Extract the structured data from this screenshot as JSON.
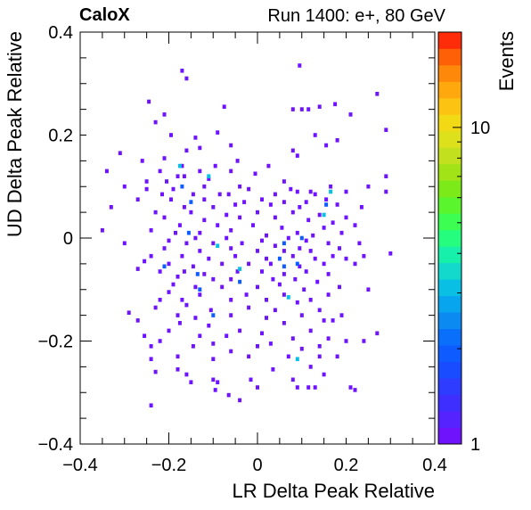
{
  "header": {
    "brand": "CaloX",
    "run_info": "Run 1400: e+, 80 GeV"
  },
  "chart_data": {
    "type": "heatmap",
    "title": "",
    "xlabel": "LR Delta Peak Relative",
    "ylabel": "UD Delta Peak Relative",
    "zlabel": "Events",
    "xlim": [
      -0.4,
      0.4
    ],
    "ylim": [
      -0.4,
      0.4
    ],
    "x_ticks": [
      "−0.4",
      "−0.2",
      "0",
      "0.2",
      "0.4"
    ],
    "y_ticks": [
      "0.4",
      "0.2",
      "0",
      "−0.2",
      "−0.4"
    ],
    "z_scale": "log",
    "zlim": [
      1,
      20
    ],
    "z_ticks": [
      "1",
      "10"
    ],
    "bin_width": 0.008,
    "bins": [
      [
        0.095,
        0.335,
        1
      ],
      [
        -0.16,
        0.31,
        1
      ],
      [
        -0.17,
        0.325,
        1
      ],
      [
        0.27,
        0.28,
        1
      ],
      [
        -0.245,
        0.265,
        1
      ],
      [
        0.175,
        0.26,
        1
      ],
      [
        -0.075,
        0.255,
        1
      ],
      [
        0.08,
        0.25,
        1
      ],
      [
        0.14,
        0.255,
        1
      ],
      [
        0.21,
        0.24,
        1
      ],
      [
        0.1,
        0.25,
        1
      ],
      [
        0.115,
        0.25,
        1
      ],
      [
        -0.21,
        0.24,
        1
      ],
      [
        -0.23,
        0.225,
        1
      ],
      [
        0.13,
        0.2,
        1
      ],
      [
        0.29,
        0.21,
        1
      ],
      [
        -0.195,
        0.2,
        1
      ],
      [
        0.18,
        0.19,
        1
      ],
      [
        -0.09,
        0.205,
        1
      ],
      [
        0.155,
        0.18,
        1
      ],
      [
        -0.06,
        0.18,
        1
      ],
      [
        0.08,
        0.17,
        1
      ],
      [
        -0.31,
        0.165,
        1
      ],
      [
        -0.14,
        0.195,
        1
      ],
      [
        -0.16,
        0.17,
        1
      ],
      [
        -0.13,
        0.175,
        1
      ],
      [
        -0.045,
        0.15,
        1
      ],
      [
        0.09,
        0.16,
        1
      ],
      [
        -0.22,
        0.13,
        1
      ],
      [
        -0.26,
        0.15,
        1
      ],
      [
        -0.095,
        0.14,
        1
      ],
      [
        -0.17,
        0.14,
        1
      ],
      [
        -0.21,
        0.155,
        1
      ],
      [
        0.025,
        0.14,
        1
      ],
      [
        -0.34,
        0.13,
        1
      ],
      [
        -0.06,
        0.13,
        1
      ],
      [
        -0.18,
        0.12,
        1
      ],
      [
        -0.005,
        0.125,
        1
      ],
      [
        -0.165,
        0.12,
        1
      ],
      [
        0.06,
        0.11,
        1
      ],
      [
        -0.11,
        0.115,
        1
      ],
      [
        -0.13,
        0.13,
        1
      ],
      [
        0.29,
        0.12,
        1
      ],
      [
        -0.205,
        0.11,
        1
      ],
      [
        -0.25,
        0.11,
        1
      ],
      [
        -0.3,
        0.1,
        1
      ],
      [
        -0.25,
        0.095,
        1
      ],
      [
        -0.19,
        0.095,
        1
      ],
      [
        -0.12,
        0.1,
        1
      ],
      [
        -0.04,
        0.1,
        1
      ],
      [
        0.075,
        0.095,
        1
      ],
      [
        0.09,
        0.09,
        1
      ],
      [
        0.12,
        0.09,
        1
      ],
      [
        0.2,
        0.09,
        1
      ],
      [
        0.25,
        0.1,
        1
      ],
      [
        -0.215,
        0.085,
        1
      ],
      [
        -0.145,
        0.085,
        1
      ],
      [
        -0.085,
        0.085,
        1
      ],
      [
        -0.065,
        0.085,
        1
      ],
      [
        -0.02,
        0.095,
        1
      ],
      [
        0.04,
        0.085,
        1
      ],
      [
        0.13,
        0.085,
        1
      ],
      [
        0.29,
        0.09,
        1
      ],
      [
        0.165,
        0.1,
        1
      ],
      [
        -0.195,
        0.075,
        1
      ],
      [
        -0.12,
        0.075,
        1
      ],
      [
        -0.03,
        0.07,
        1
      ],
      [
        0.01,
        0.075,
        1
      ],
      [
        0.06,
        0.07,
        1
      ],
      [
        0.11,
        0.07,
        1
      ],
      [
        0.155,
        0.075,
        1
      ],
      [
        -0.27,
        0.075,
        1
      ],
      [
        -0.165,
        0.06,
        1
      ],
      [
        -0.1,
        0.06,
        1
      ],
      [
        -0.05,
        0.065,
        1
      ],
      [
        0.03,
        0.065,
        1
      ],
      [
        0.095,
        0.06,
        1
      ],
      [
        0.18,
        0.065,
        1
      ],
      [
        0.235,
        0.06,
        1
      ],
      [
        -0.33,
        0.06,
        1
      ],
      [
        -0.23,
        0.05,
        1
      ],
      [
        -0.15,
        0.05,
        1
      ],
      [
        -0.07,
        0.045,
        1
      ],
      [
        0.0,
        0.05,
        1
      ],
      [
        0.08,
        0.05,
        1
      ],
      [
        0.14,
        0.045,
        1
      ],
      [
        0.2,
        0.04,
        1
      ],
      [
        -0.21,
        0.04,
        1
      ],
      [
        -0.12,
        0.035,
        1
      ],
      [
        -0.04,
        0.04,
        1
      ],
      [
        0.04,
        0.04,
        1
      ],
      [
        0.115,
        0.035,
        1
      ],
      [
        0.17,
        0.03,
        1
      ],
      [
        -0.175,
        0.025,
        1
      ],
      [
        -0.09,
        0.025,
        1
      ],
      [
        -0.01,
        0.025,
        1
      ],
      [
        0.055,
        0.02,
        1
      ],
      [
        0.15,
        0.02,
        1
      ],
      [
        0.22,
        0.025,
        1
      ],
      [
        -0.35,
        0.015,
        1
      ],
      [
        -0.24,
        0.015,
        1
      ],
      [
        -0.185,
        0.01,
        1
      ],
      [
        -0.13,
        0.01,
        1
      ],
      [
        -0.06,
        0.015,
        1
      ],
      [
        0.02,
        0.005,
        1
      ],
      [
        0.09,
        0.01,
        1
      ],
      [
        0.125,
        0.005,
        1
      ],
      [
        0.19,
        0.01,
        1
      ],
      [
        -0.14,
        0.0,
        1
      ],
      [
        -0.07,
        0.0,
        1
      ],
      [
        0.01,
        -0.005,
        1
      ],
      [
        0.07,
        0.0,
        1
      ],
      [
        0.11,
        -0.005,
        1
      ],
      [
        -0.3,
        -0.01,
        1
      ],
      [
        -0.2,
        -0.005,
        1
      ],
      [
        -0.16,
        -0.01,
        1
      ],
      [
        -0.1,
        -0.01,
        1
      ],
      [
        -0.035,
        -0.01,
        1
      ],
      [
        0.04,
        -0.015,
        1
      ],
      [
        0.095,
        -0.02,
        1
      ],
      [
        0.16,
        -0.01,
        1
      ],
      [
        0.23,
        -0.01,
        1
      ],
      [
        -0.21,
        -0.02,
        1
      ],
      [
        -0.13,
        -0.025,
        1
      ],
      [
        -0.06,
        -0.02,
        1
      ],
      [
        0.0,
        -0.025,
        1
      ],
      [
        0.06,
        -0.025,
        1
      ],
      [
        0.12,
        -0.025,
        1
      ],
      [
        0.185,
        -0.02,
        1
      ],
      [
        -0.24,
        -0.035,
        1
      ],
      [
        -0.17,
        -0.035,
        1
      ],
      [
        -0.11,
        -0.04,
        1
      ],
      [
        -0.05,
        -0.035,
        1
      ],
      [
        0.02,
        -0.04,
        1
      ],
      [
        0.08,
        -0.035,
        1
      ],
      [
        0.13,
        -0.04,
        1
      ],
      [
        0.17,
        -0.035,
        1
      ],
      [
        0.2,
        -0.04,
        1
      ],
      [
        0.24,
        -0.035,
        1
      ],
      [
        0.3,
        -0.03,
        1
      ],
      [
        -0.255,
        -0.045,
        1
      ],
      [
        -0.2,
        -0.05,
        1
      ],
      [
        -0.145,
        -0.055,
        1
      ],
      [
        -0.08,
        -0.05,
        1
      ],
      [
        -0.02,
        -0.05,
        1
      ],
      [
        0.03,
        -0.05,
        1
      ],
      [
        0.095,
        -0.055,
        1
      ],
      [
        0.15,
        -0.05,
        1
      ],
      [
        0.22,
        -0.05,
        1
      ],
      [
        -0.27,
        -0.06,
        1
      ],
      [
        -0.22,
        -0.065,
        1
      ],
      [
        -0.165,
        -0.065,
        1
      ],
      [
        -0.12,
        -0.07,
        1
      ],
      [
        -0.045,
        -0.065,
        1
      ],
      [
        0.01,
        -0.065,
        1
      ],
      [
        0.06,
        -0.07,
        1
      ],
      [
        0.11,
        -0.065,
        1
      ],
      [
        0.16,
        -0.07,
        1
      ],
      [
        -0.18,
        -0.075,
        1
      ],
      [
        -0.1,
        -0.08,
        1
      ],
      [
        -0.06,
        -0.08,
        1
      ],
      [
        0.035,
        -0.08,
        1
      ],
      [
        0.085,
        -0.08,
        1
      ],
      [
        0.135,
        -0.085,
        1
      ],
      [
        -0.19,
        -0.09,
        1
      ],
      [
        -0.14,
        -0.095,
        1
      ],
      [
        -0.08,
        -0.095,
        1
      ],
      [
        0.0,
        -0.095,
        1
      ],
      [
        0.05,
        -0.09,
        1
      ],
      [
        0.105,
        -0.1,
        1
      ],
      [
        0.185,
        -0.095,
        1
      ],
      [
        -0.2,
        -0.105,
        1
      ],
      [
        -0.13,
        -0.11,
        1
      ],
      [
        -0.025,
        -0.11,
        1
      ],
      [
        0.06,
        -0.11,
        1
      ],
      [
        0.16,
        -0.11,
        1
      ],
      [
        0.25,
        -0.1,
        1
      ],
      [
        -0.22,
        -0.12,
        1
      ],
      [
        -0.17,
        -0.12,
        1
      ],
      [
        -0.06,
        -0.12,
        1
      ],
      [
        0.02,
        -0.12,
        1
      ],
      [
        0.09,
        -0.125,
        1
      ],
      [
        0.12,
        -0.12,
        1
      ],
      [
        -0.16,
        -0.13,
        1
      ],
      [
        -0.105,
        -0.14,
        1
      ],
      [
        -0.02,
        -0.135,
        1
      ],
      [
        0.04,
        -0.14,
        1
      ],
      [
        0.14,
        -0.14,
        1
      ],
      [
        -0.23,
        -0.135,
        1
      ],
      [
        -0.18,
        -0.15,
        1
      ],
      [
        -0.14,
        -0.155,
        1
      ],
      [
        -0.06,
        -0.15,
        1
      ],
      [
        0.02,
        -0.155,
        1
      ],
      [
        0.1,
        -0.15,
        1
      ],
      [
        0.19,
        -0.15,
        1
      ],
      [
        -0.29,
        -0.145,
        1
      ],
      [
        -0.27,
        -0.16,
        1
      ],
      [
        -0.175,
        -0.165,
        1
      ],
      [
        -0.11,
        -0.17,
        1
      ],
      [
        0.06,
        -0.165,
        1
      ],
      [
        0.15,
        -0.16,
        1
      ],
      [
        0.17,
        -0.16,
        1
      ],
      [
        -0.2,
        -0.18,
        1
      ],
      [
        -0.04,
        -0.18,
        1
      ],
      [
        0.01,
        -0.185,
        1
      ],
      [
        0.12,
        -0.18,
        1
      ],
      [
        0.27,
        -0.185,
        1
      ],
      [
        -0.255,
        -0.19,
        1
      ],
      [
        -0.13,
        -0.19,
        1
      ],
      [
        -0.07,
        -0.19,
        1
      ],
      [
        0.08,
        -0.195,
        1
      ],
      [
        0.16,
        -0.195,
        1
      ],
      [
        -0.22,
        -0.2,
        1
      ],
      [
        -0.1,
        -0.205,
        1
      ],
      [
        0.03,
        -0.205,
        1
      ],
      [
        0.2,
        -0.2,
        1
      ],
      [
        0.24,
        -0.2,
        1
      ],
      [
        -0.145,
        -0.21,
        1
      ],
      [
        -0.06,
        -0.22,
        1
      ],
      [
        0.0,
        -0.21,
        1
      ],
      [
        0.1,
        -0.215,
        1
      ],
      [
        0.14,
        -0.21,
        1
      ],
      [
        -0.24,
        -0.21,
        1
      ],
      [
        -0.18,
        -0.23,
        1
      ],
      [
        -0.02,
        -0.23,
        1
      ],
      [
        0.07,
        -0.23,
        1
      ],
      [
        0.18,
        -0.23,
        1
      ],
      [
        0.14,
        -0.23,
        1
      ],
      [
        -0.24,
        -0.235,
        1
      ],
      [
        -0.1,
        -0.235,
        1
      ],
      [
        0.12,
        -0.25,
        1
      ],
      [
        -0.18,
        -0.255,
        1
      ],
      [
        0.035,
        -0.255,
        1
      ],
      [
        0.15,
        -0.265,
        1
      ],
      [
        -0.015,
        -0.275,
        1
      ],
      [
        -0.23,
        -0.26,
        1
      ],
      [
        -0.16,
        -0.265,
        1
      ],
      [
        -0.1,
        -0.275,
        1
      ],
      [
        -0.09,
        -0.28,
        1
      ],
      [
        0.08,
        -0.275,
        1
      ],
      [
        -0.15,
        -0.28,
        1
      ],
      [
        0.0,
        -0.29,
        1
      ],
      [
        -0.065,
        -0.305,
        1
      ],
      [
        0.09,
        -0.29,
        1
      ],
      [
        0.115,
        -0.29,
        1
      ],
      [
        -0.24,
        -0.325,
        1
      ],
      [
        -0.095,
        -0.295,
        1
      ],
      [
        0.22,
        -0.295,
        1
      ],
      [
        0.13,
        -0.29,
        1
      ],
      [
        -0.04,
        -0.315,
        1
      ],
      [
        0.21,
        -0.29,
        1
      ],
      [
        -0.175,
        0.14,
        3
      ],
      [
        -0.11,
        0.12,
        3
      ],
      [
        -0.17,
        0.1,
        2
      ],
      [
        0.165,
        0.09,
        3
      ],
      [
        -0.15,
        0.07,
        2
      ],
      [
        0.155,
        0.065,
        2
      ],
      [
        0.15,
        0.045,
        3
      ],
      [
        -0.155,
        0.01,
        2
      ],
      [
        0.1,
        0.0,
        2
      ],
      [
        0.06,
        -0.01,
        2
      ],
      [
        -0.09,
        -0.015,
        3
      ],
      [
        0.09,
        -0.05,
        2
      ],
      [
        0.05,
        -0.04,
        2
      ],
      [
        -0.21,
        -0.055,
        2
      ],
      [
        -0.04,
        -0.06,
        3
      ],
      [
        0.06,
        -0.055,
        2
      ],
      [
        -0.135,
        -0.07,
        2
      ],
      [
        -0.04,
        -0.085,
        2
      ],
      [
        -0.13,
        -0.1,
        2
      ],
      [
        0.07,
        -0.115,
        3
      ],
      [
        -0.1,
        -0.15,
        2
      ],
      [
        0.09,
        -0.235,
        3
      ]
    ]
  }
}
